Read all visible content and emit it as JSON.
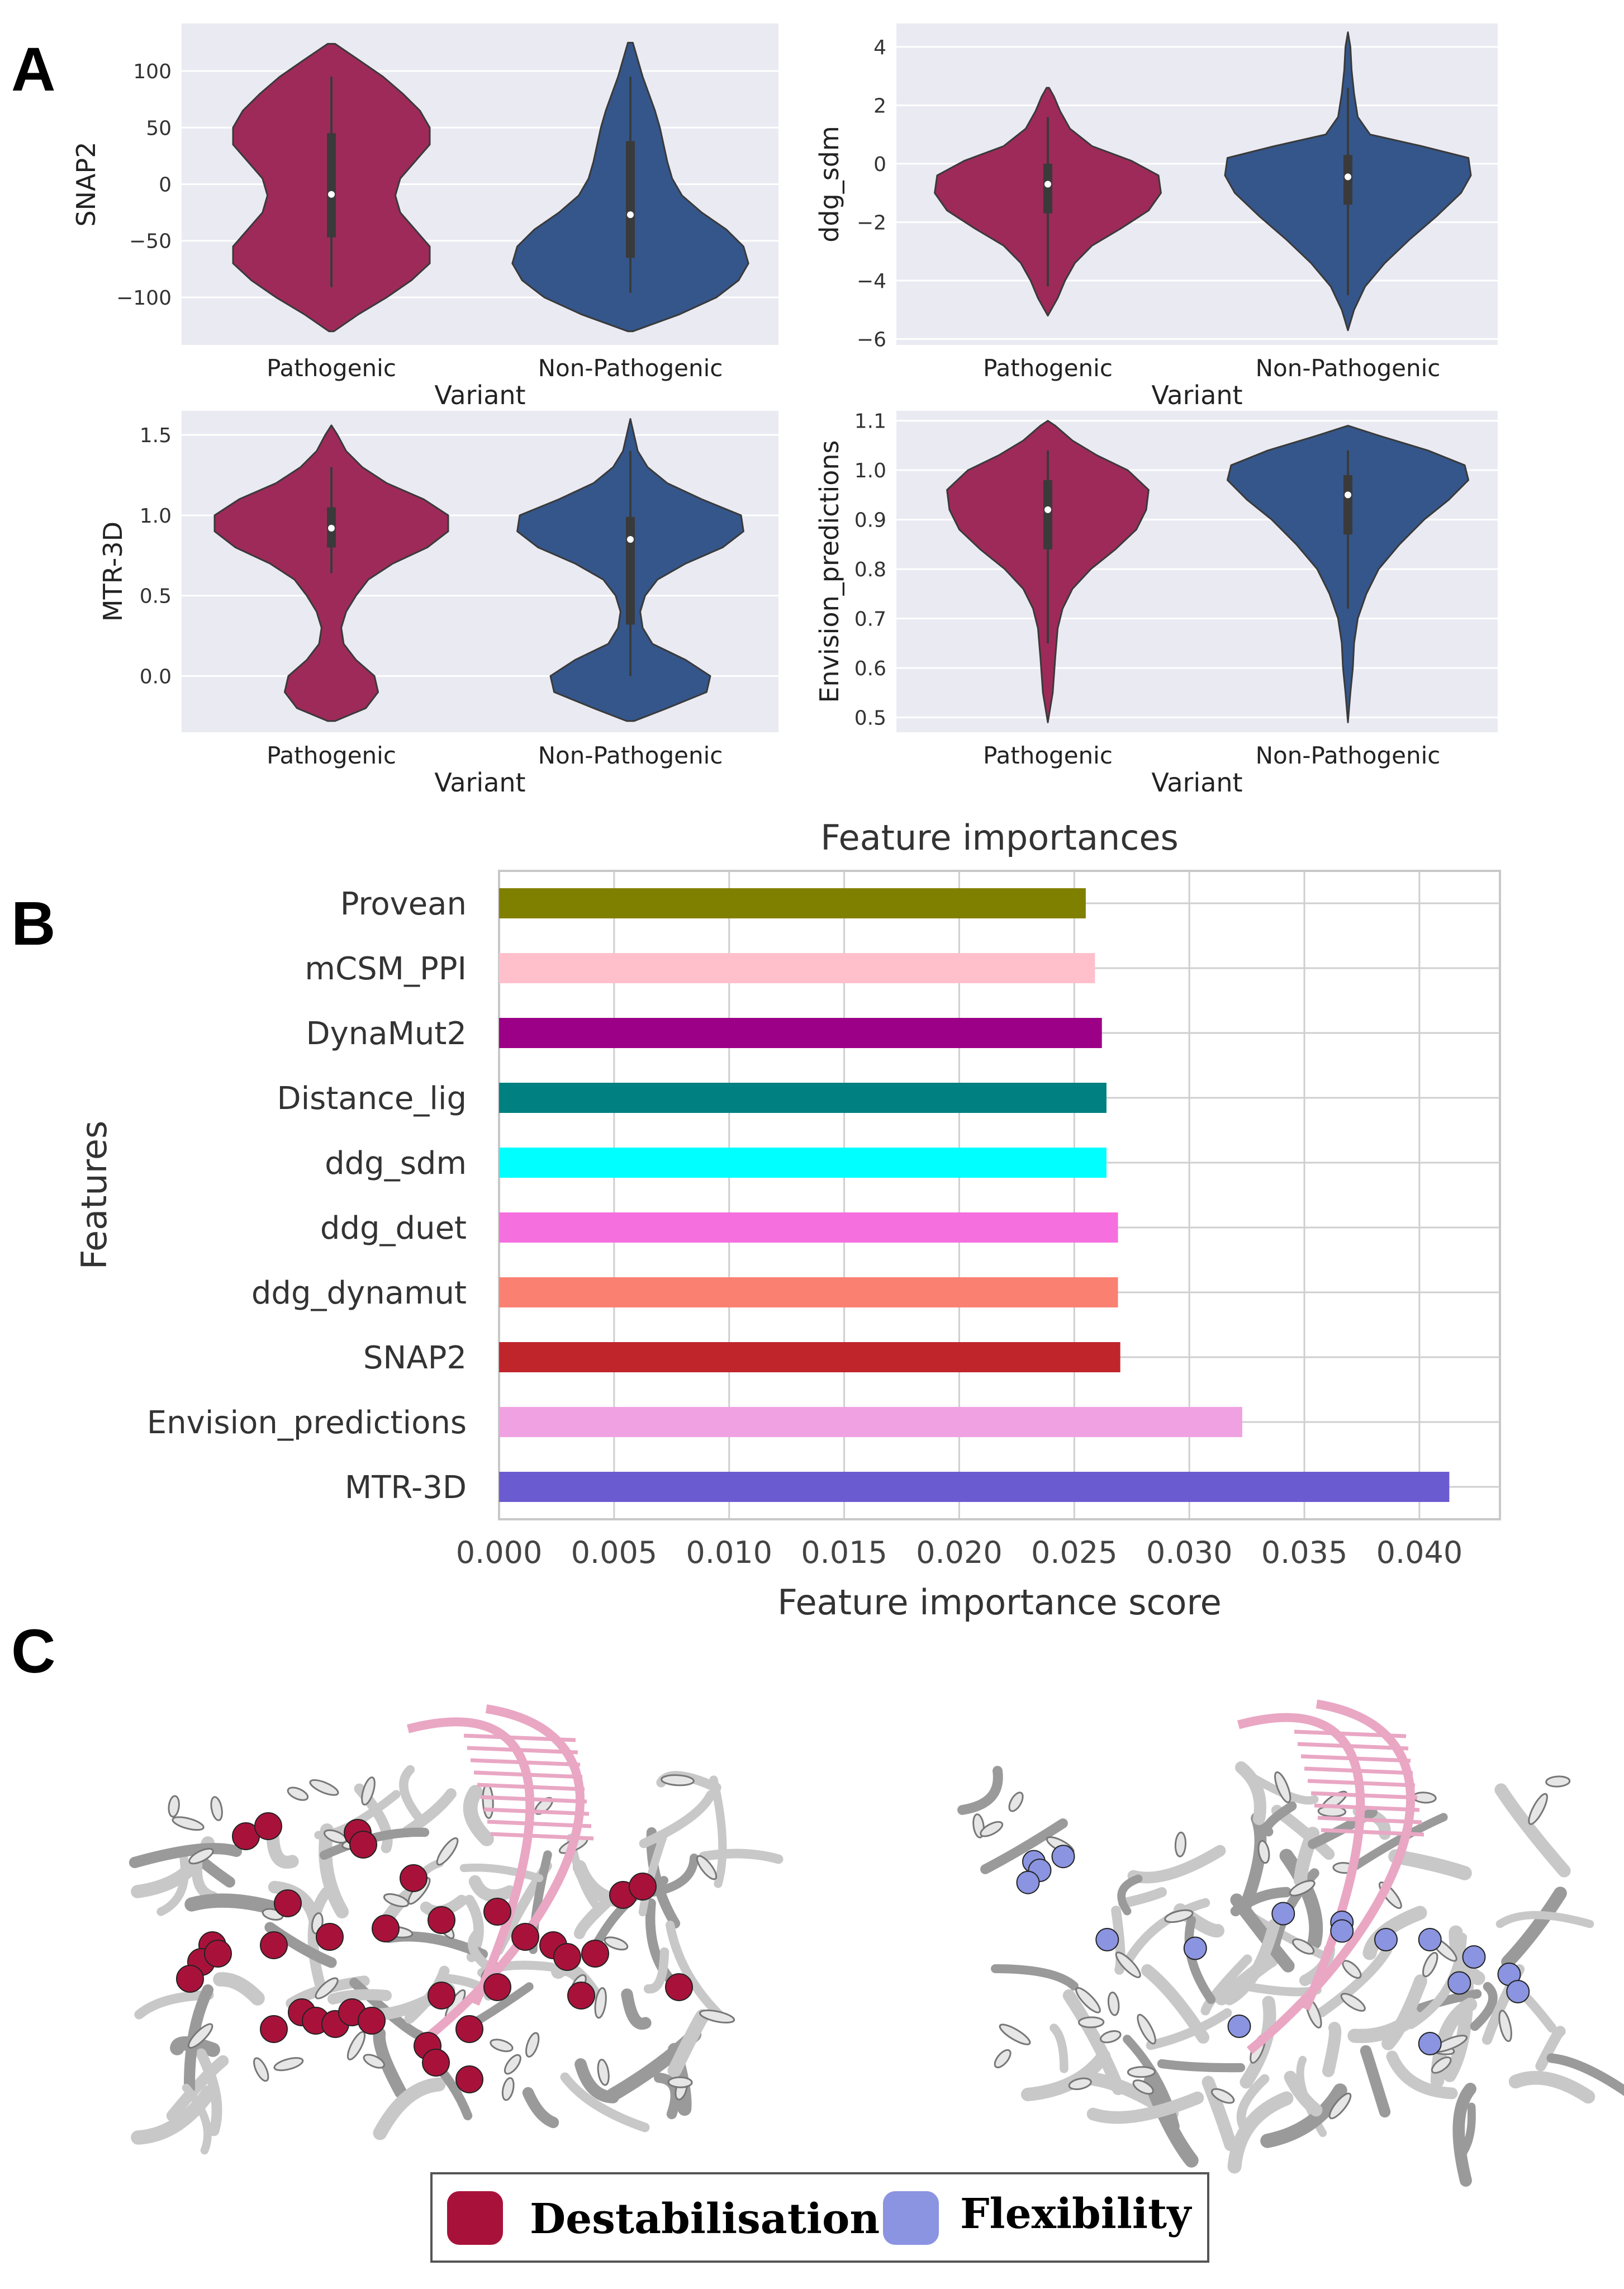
{
  "panels": {
    "a": "A",
    "b": "B",
    "c": "C"
  },
  "colors": {
    "pathogenic": "#9E2A5A",
    "non_pathogenic": "#34568B",
    "grid_bg": "#EAEAF2",
    "destabilisation": "#A8123A",
    "flexibility": "#8A94E0"
  },
  "chart_data": [
    {
      "type": "violin",
      "id": "snap2",
      "ylabel": "SNAP2",
      "xlabel": "Variant",
      "categories": [
        "Pathogenic",
        "Non-Pathogenic"
      ],
      "ylim": [
        -142,
        142
      ],
      "yticks": [
        -100,
        -50,
        0,
        50,
        100
      ],
      "series": [
        {
          "name": "Pathogenic",
          "color": "#9E2A5A",
          "min": -91,
          "q1": -47,
          "median": -9,
          "q3": 45,
          "max": 95,
          "density": [
            [
              -130,
              0.02
            ],
            [
              -115,
              0.22
            ],
            [
              -100,
              0.45
            ],
            [
              -85,
              0.65
            ],
            [
              -70,
              0.8
            ],
            [
              -55,
              0.8
            ],
            [
              -40,
              0.68
            ],
            [
              -25,
              0.56
            ],
            [
              -10,
              0.52
            ],
            [
              5,
              0.56
            ],
            [
              20,
              0.68
            ],
            [
              35,
              0.8
            ],
            [
              50,
              0.8
            ],
            [
              65,
              0.72
            ],
            [
              80,
              0.58
            ],
            [
              95,
              0.42
            ],
            [
              110,
              0.22
            ],
            [
              124,
              0.03
            ]
          ]
        },
        {
          "name": "Non-Pathogenic",
          "color": "#34568B",
          "min": -96,
          "q1": -65,
          "median": -27,
          "q3": 38,
          "max": 95,
          "density": [
            [
              -130,
              0.02
            ],
            [
              -115,
              0.4
            ],
            [
              -100,
              0.7
            ],
            [
              -85,
              0.88
            ],
            [
              -70,
              0.96
            ],
            [
              -55,
              0.92
            ],
            [
              -40,
              0.78
            ],
            [
              -25,
              0.58
            ],
            [
              -10,
              0.42
            ],
            [
              5,
              0.34
            ],
            [
              20,
              0.3
            ],
            [
              35,
              0.27
            ],
            [
              50,
              0.24
            ],
            [
              65,
              0.2
            ],
            [
              80,
              0.15
            ],
            [
              95,
              0.1
            ],
            [
              110,
              0.06
            ],
            [
              125,
              0.02
            ]
          ]
        }
      ]
    },
    {
      "type": "violin",
      "id": "ddg_sdm",
      "ylabel": "ddg_sdm",
      "xlabel": "Variant",
      "categories": [
        "Pathogenic",
        "Non-Pathogenic"
      ],
      "ylim": [
        -6.2,
        4.8
      ],
      "yticks": [
        -6,
        -4,
        -2,
        0,
        2,
        4
      ],
      "series": [
        {
          "name": "Pathogenic",
          "color": "#9E2A5A",
          "min": -4.2,
          "q1": -1.7,
          "median": -0.7,
          "q3": 0.0,
          "max": 1.6,
          "density": [
            [
              -5.2,
              0.0
            ],
            [
              -4.6,
              0.08
            ],
            [
              -4.0,
              0.14
            ],
            [
              -3.4,
              0.22
            ],
            [
              -2.8,
              0.36
            ],
            [
              -2.2,
              0.6
            ],
            [
              -1.6,
              0.82
            ],
            [
              -1.0,
              0.92
            ],
            [
              -0.4,
              0.9
            ],
            [
              0.1,
              0.68
            ],
            [
              0.6,
              0.36
            ],
            [
              1.2,
              0.18
            ],
            [
              1.8,
              0.1
            ],
            [
              2.3,
              0.05
            ],
            [
              2.6,
              0.01
            ]
          ]
        },
        {
          "name": "Non-Pathogenic",
          "color": "#34568B",
          "min": -4.5,
          "q1": -1.4,
          "median": -0.45,
          "q3": 0.3,
          "max": 2.6,
          "density": [
            [
              -5.7,
              0.0
            ],
            [
              -5.0,
              0.05
            ],
            [
              -4.2,
              0.14
            ],
            [
              -3.4,
              0.3
            ],
            [
              -2.6,
              0.5
            ],
            [
              -1.8,
              0.72
            ],
            [
              -1.0,
              0.92
            ],
            [
              -0.4,
              1.0
            ],
            [
              0.2,
              0.98
            ],
            [
              0.6,
              0.6
            ],
            [
              1.0,
              0.18
            ],
            [
              1.6,
              0.08
            ],
            [
              2.4,
              0.05
            ],
            [
              3.2,
              0.03
            ],
            [
              4.0,
              0.02
            ],
            [
              4.5,
              0.0
            ]
          ]
        }
      ]
    },
    {
      "type": "violin",
      "id": "mtr3d",
      "ylabel": "MTR-3D",
      "xlabel": "Variant",
      "categories": [
        "Pathogenic",
        "Non-Pathogenic"
      ],
      "ylim": [
        -0.35,
        1.65
      ],
      "yticks": [
        0.0,
        0.5,
        1.0,
        1.5
      ],
      "series": [
        {
          "name": "Pathogenic",
          "color": "#9E2A5A",
          "min": 0.64,
          "q1": 0.8,
          "median": 0.92,
          "q3": 1.05,
          "max": 1.3,
          "density": [
            [
              -0.28,
              0.03
            ],
            [
              -0.2,
              0.28
            ],
            [
              -0.1,
              0.38
            ],
            [
              0.0,
              0.35
            ],
            [
              0.1,
              0.2
            ],
            [
              0.2,
              0.1
            ],
            [
              0.3,
              0.08
            ],
            [
              0.4,
              0.12
            ],
            [
              0.5,
              0.2
            ],
            [
              0.6,
              0.3
            ],
            [
              0.7,
              0.5
            ],
            [
              0.8,
              0.78
            ],
            [
              0.9,
              0.95
            ],
            [
              1.0,
              0.95
            ],
            [
              1.1,
              0.75
            ],
            [
              1.2,
              0.45
            ],
            [
              1.3,
              0.25
            ],
            [
              1.4,
              0.12
            ],
            [
              1.5,
              0.05
            ],
            [
              1.56,
              0.0
            ]
          ]
        },
        {
          "name": "Non-Pathogenic",
          "color": "#34568B",
          "min": 0.0,
          "q1": 0.32,
          "median": 0.85,
          "q3": 0.99,
          "max": 1.4,
          "density": [
            [
              -0.28,
              0.03
            ],
            [
              -0.2,
              0.3
            ],
            [
              -0.1,
              0.62
            ],
            [
              0.0,
              0.65
            ],
            [
              0.1,
              0.45
            ],
            [
              0.2,
              0.18
            ],
            [
              0.3,
              0.1
            ],
            [
              0.4,
              0.08
            ],
            [
              0.5,
              0.12
            ],
            [
              0.6,
              0.22
            ],
            [
              0.7,
              0.45
            ],
            [
              0.8,
              0.75
            ],
            [
              0.9,
              0.92
            ],
            [
              1.0,
              0.9
            ],
            [
              1.1,
              0.58
            ],
            [
              1.2,
              0.3
            ],
            [
              1.3,
              0.14
            ],
            [
              1.4,
              0.06
            ],
            [
              1.5,
              0.03
            ],
            [
              1.6,
              0.0
            ]
          ]
        }
      ]
    },
    {
      "type": "violin",
      "id": "envision",
      "ylabel": "Envision_predictions",
      "xlabel": "Variant",
      "categories": [
        "Pathogenic",
        "Non-Pathogenic"
      ],
      "ylim": [
        0.47,
        1.12
      ],
      "yticks": [
        0.5,
        0.6,
        0.7,
        0.8,
        0.9,
        1.0,
        1.1
      ],
      "series": [
        {
          "name": "Pathogenic",
          "color": "#9E2A5A",
          "min": 0.65,
          "q1": 0.84,
          "median": 0.92,
          "q3": 0.98,
          "max": 1.04,
          "density": [
            [
              0.49,
              0.0
            ],
            [
              0.55,
              0.04
            ],
            [
              0.62,
              0.06
            ],
            [
              0.68,
              0.08
            ],
            [
              0.72,
              0.12
            ],
            [
              0.76,
              0.2
            ],
            [
              0.8,
              0.35
            ],
            [
              0.84,
              0.55
            ],
            [
              0.88,
              0.72
            ],
            [
              0.92,
              0.8
            ],
            [
              0.96,
              0.82
            ],
            [
              1.0,
              0.65
            ],
            [
              1.03,
              0.4
            ],
            [
              1.06,
              0.2
            ],
            [
              1.09,
              0.06
            ],
            [
              1.1,
              0.0
            ]
          ]
        },
        {
          "name": "Non-Pathogenic",
          "color": "#34568B",
          "min": 0.72,
          "q1": 0.87,
          "median": 0.95,
          "q3": 0.99,
          "max": 1.04,
          "density": [
            [
              0.49,
              0.0
            ],
            [
              0.55,
              0.02
            ],
            [
              0.6,
              0.04
            ],
            [
              0.65,
              0.05
            ],
            [
              0.7,
              0.08
            ],
            [
              0.75,
              0.15
            ],
            [
              0.8,
              0.25
            ],
            [
              0.85,
              0.42
            ],
            [
              0.9,
              0.62
            ],
            [
              0.94,
              0.82
            ],
            [
              0.98,
              0.98
            ],
            [
              1.01,
              0.95
            ],
            [
              1.04,
              0.65
            ],
            [
              1.07,
              0.25
            ],
            [
              1.09,
              0.0
            ]
          ]
        }
      ]
    },
    {
      "type": "bar",
      "id": "importances",
      "orientation": "horizontal",
      "title": "Feature importances",
      "xlabel": "Feature importance score",
      "ylabel": "Features",
      "xlim": [
        0.0,
        0.0435
      ],
      "xticks": [
        "0.000",
        "0.005",
        "0.010",
        "0.015",
        "0.020",
        "0.025",
        "0.030",
        "0.035",
        "0.040"
      ],
      "categories": [
        "Provean",
        "mCSM_PPI",
        "DynaMut2",
        "Distance_lig",
        "ddg_sdm",
        "ddg_duet",
        "ddg_dynamut",
        "SNAP2",
        "Envision_predictions",
        "MTR-3D"
      ],
      "values": [
        0.0255,
        0.0259,
        0.0262,
        0.0264,
        0.0264,
        0.0269,
        0.0269,
        0.027,
        0.0323,
        0.0413
      ],
      "colors": [
        "#808000",
        "#FFC0CB",
        "#9B0086",
        "#008080",
        "#00FFFF",
        "#F66FDF",
        "#FA8072",
        "#C0252B",
        "#F0A1E1",
        "#6B5BD0"
      ]
    }
  ],
  "legend": [
    {
      "label": "Destabilisation",
      "color": "#A8123A"
    },
    {
      "label": "Flexibility",
      "color": "#8A94E0"
    }
  ]
}
